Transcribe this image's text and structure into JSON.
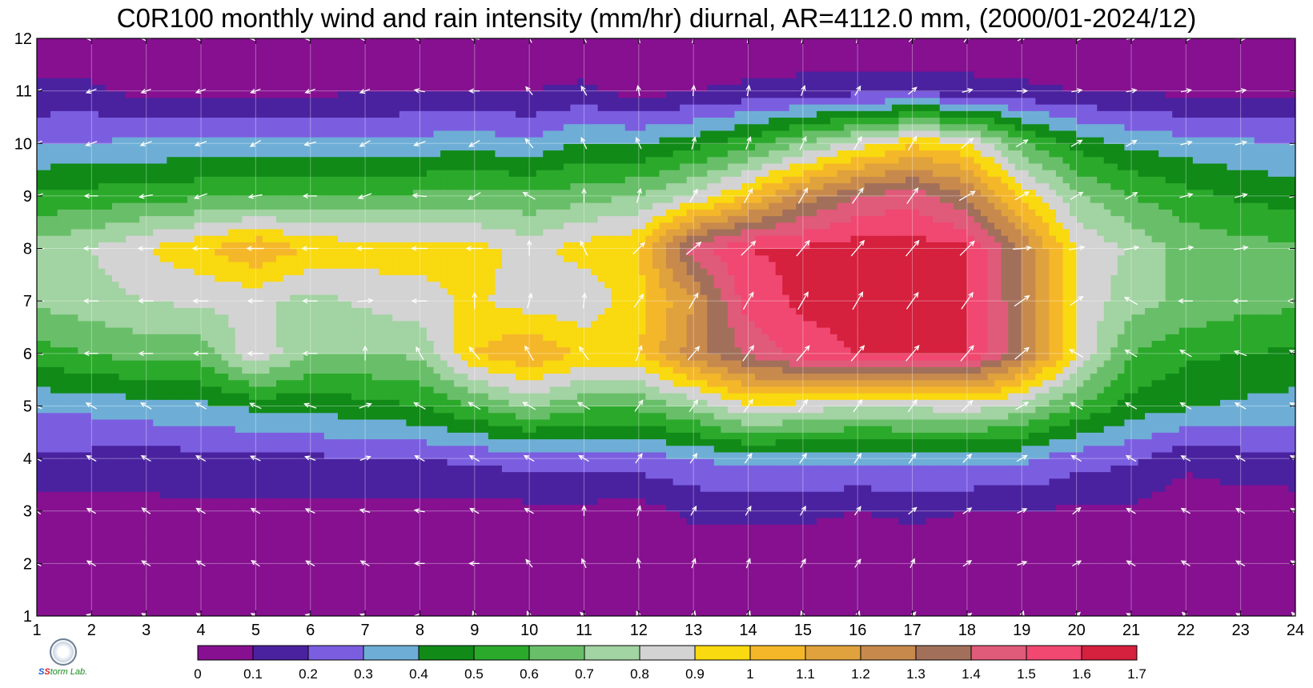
{
  "title": "C0R100 monthly wind and rain intensity (mm/hr) diurnal, AR=4112.0 mm, (2000/01-2024/12)",
  "chart_data": {
    "type": "heatmap",
    "title": "C0R100 monthly wind and rain intensity (mm/hr) diurnal, AR=4112.0 mm, (2000/01-2024/12)",
    "x_ticks": [
      "1",
      "2",
      "3",
      "4",
      "5",
      "6",
      "7",
      "8",
      "9",
      "10",
      "11",
      "12",
      "13",
      "14",
      "15",
      "16",
      "17",
      "18",
      "19",
      "20",
      "21",
      "22",
      "23",
      "24"
    ],
    "y_ticks": [
      "1",
      "2",
      "3",
      "4",
      "5",
      "6",
      "7",
      "8",
      "9",
      "10",
      "11",
      "12"
    ],
    "xlim": [
      1,
      24
    ],
    "ylim": [
      1,
      12
    ],
    "grid": true,
    "colorbar": {
      "ticks": [
        "0",
        "0.1",
        "0.2",
        "0.3",
        "0.4",
        "0.5",
        "0.6",
        "0.7",
        "0.8",
        "0.9",
        "1",
        "1.1",
        "1.2",
        "1.3",
        "1.4",
        "1.5",
        "1.6",
        "1.7"
      ],
      "colors": [
        "#861090",
        "#4a22a0",
        "#7b5ee0",
        "#6eaed6",
        "#118a18",
        "#2ba92b",
        "#69bf69",
        "#a2d3a2",
        "#d3d3d3",
        "#f9d90f",
        "#f5b72a",
        "#e0a23d",
        "#c88a4c",
        "#a2705a",
        "#e05a7a",
        "#f04870",
        "#d5203e"
      ]
    },
    "months": [
      1,
      2,
      3,
      4,
      5,
      6,
      7,
      8,
      9,
      10,
      11,
      12
    ],
    "rain_rate": [
      [
        0.02,
        0.02,
        0.02,
        0.02,
        0.02,
        0.02,
        0.02,
        0.02,
        0.02,
        0.02,
        0.02,
        0.02,
        0.02,
        0.02,
        0.02,
        0.02,
        0.02,
        0.02,
        0.02,
        0.02,
        0.02,
        0.02,
        0.02,
        0.02
      ],
      [
        0.03,
        0.03,
        0.03,
        0.03,
        0.03,
        0.03,
        0.03,
        0.03,
        0.03,
        0.03,
        0.03,
        0.03,
        0.03,
        0.03,
        0.03,
        0.03,
        0.03,
        0.03,
        0.03,
        0.03,
        0.03,
        0.03,
        0.03,
        0.03
      ],
      [
        0.05,
        0.06,
        0.07,
        0.08,
        0.08,
        0.07,
        0.06,
        0.06,
        0.06,
        0.07,
        0.07,
        0.06,
        0.12,
        0.12,
        0.12,
        0.1,
        0.12,
        0.1,
        0.1,
        0.08,
        0.08,
        0.04,
        0.04,
        0.04
      ],
      [
        0.18,
        0.17,
        0.16,
        0.16,
        0.17,
        0.18,
        0.2,
        0.2,
        0.22,
        0.24,
        0.24,
        0.25,
        0.3,
        0.33,
        0.33,
        0.32,
        0.33,
        0.33,
        0.32,
        0.24,
        0.22,
        0.12,
        0.16,
        0.18
      ],
      [
        0.32,
        0.33,
        0.36,
        0.38,
        0.42,
        0.44,
        0.46,
        0.5,
        0.6,
        0.72,
        0.62,
        0.62,
        0.72,
        0.9,
        0.85,
        0.8,
        0.82,
        0.85,
        0.76,
        0.6,
        0.46,
        0.42,
        0.38,
        0.36
      ],
      [
        0.56,
        0.6,
        0.64,
        0.64,
        0.88,
        0.7,
        0.7,
        0.72,
        1.0,
        1.1,
        0.98,
        1.0,
        1.25,
        1.42,
        1.55,
        1.6,
        1.6,
        1.6,
        1.32,
        0.9,
        0.6,
        0.52,
        0.5,
        0.48
      ],
      [
        0.72,
        0.76,
        0.8,
        0.82,
        0.82,
        0.76,
        0.82,
        0.86,
        0.92,
        0.85,
        0.82,
        0.96,
        1.2,
        1.55,
        1.62,
        1.65,
        1.6,
        1.62,
        1.3,
        0.88,
        0.74,
        0.68,
        0.64,
        0.62
      ],
      [
        0.74,
        0.8,
        0.9,
        0.98,
        1.1,
        0.98,
        0.96,
        0.94,
        0.94,
        0.86,
        0.95,
        1.0,
        1.45,
        1.6,
        1.62,
        1.66,
        1.65,
        1.62,
        1.28,
        0.9,
        0.78,
        0.66,
        0.64,
        0.62
      ],
      [
        0.52,
        0.54,
        0.56,
        0.58,
        0.6,
        0.6,
        0.6,
        0.62,
        0.64,
        0.62,
        0.66,
        0.7,
        0.82,
        1.02,
        1.25,
        1.4,
        1.46,
        1.3,
        0.98,
        0.72,
        0.6,
        0.54,
        0.48,
        0.46
      ],
      [
        0.3,
        0.31,
        0.32,
        0.33,
        0.33,
        0.32,
        0.32,
        0.34,
        0.36,
        0.32,
        0.42,
        0.4,
        0.46,
        0.56,
        0.7,
        0.84,
        0.98,
        0.92,
        0.62,
        0.46,
        0.38,
        0.34,
        0.32,
        0.3
      ],
      [
        0.12,
        0.12,
        0.06,
        0.08,
        0.08,
        0.08,
        0.09,
        0.1,
        0.1,
        0.1,
        0.12,
        0.06,
        0.1,
        0.12,
        0.14,
        0.16,
        0.16,
        0.14,
        0.12,
        0.1,
        0.09,
        0.08,
        0.08,
        0.08
      ],
      [
        0.02,
        0.02,
        0.02,
        0.02,
        0.02,
        0.02,
        0.02,
        0.02,
        0.02,
        0.02,
        0.02,
        0.02,
        0.02,
        0.02,
        0.02,
        0.02,
        0.02,
        0.02,
        0.02,
        0.02,
        0.02,
        0.02,
        0.02,
        0.02
      ]
    ],
    "wind_direction_deg": [
      [
        300,
        285,
        300,
        300,
        300,
        285,
        290,
        275,
        340,
        335,
        315,
        335,
        15,
        20,
        340,
        20,
        40,
        60,
        20,
        45,
        300,
        315,
        300,
        315
      ],
      [
        300,
        300,
        300,
        300,
        305,
        300,
        300,
        270,
        270,
        320,
        335,
        350,
        20,
        20,
        30,
        35,
        25,
        55,
        70,
        60,
        300,
        300,
        300,
        300
      ],
      [
        310,
        300,
        305,
        300,
        300,
        295,
        285,
        280,
        300,
        300,
        0,
        15,
        30,
        30,
        30,
        35,
        50,
        55,
        65,
        50,
        300,
        300,
        300,
        300
      ],
      [
        300,
        300,
        300,
        300,
        295,
        290,
        70,
        300,
        300,
        300,
        300,
        35,
        35,
        35,
        35,
        35,
        35,
        45,
        60,
        300,
        300,
        300,
        300,
        300
      ],
      [
        300,
        300,
        300,
        300,
        295,
        290,
        70,
        300,
        300,
        300,
        300,
        35,
        35,
        35,
        35,
        35,
        35,
        45,
        60,
        300,
        300,
        300,
        300,
        300
      ],
      [
        280,
        270,
        270,
        270,
        270,
        270,
        0,
        330,
        320,
        330,
        325,
        20,
        40,
        35,
        40,
        40,
        40,
        40,
        50,
        300,
        300,
        300,
        290,
        300
      ],
      [
        270,
        270,
        270,
        270,
        270,
        270,
        85,
        270,
        0,
        15,
        5,
        35,
        30,
        30,
        30,
        30,
        35,
        35,
        55,
        55,
        300,
        270,
        270,
        270
      ],
      [
        270,
        270,
        270,
        270,
        270,
        270,
        270,
        270,
        270,
        0,
        335,
        45,
        50,
        45,
        40,
        40,
        40,
        45,
        85,
        80,
        80,
        80,
        80,
        85
      ],
      [
        250,
        270,
        260,
        250,
        260,
        270,
        250,
        275,
        240,
        300,
        0,
        15,
        30,
        30,
        30,
        35,
        35,
        60,
        60,
        60,
        60,
        75,
        75,
        75
      ],
      [
        245,
        250,
        250,
        250,
        240,
        255,
        240,
        250,
        240,
        320,
        335,
        335,
        15,
        20,
        25,
        30,
        30,
        50,
        60,
        60,
        60,
        75,
        75,
        75
      ],
      [
        250,
        250,
        250,
        250,
        250,
        250,
        250,
        280,
        270,
        320,
        330,
        350,
        5,
        10,
        20,
        30,
        50,
        75,
        90,
        80,
        80,
        80,
        80,
        90
      ],
      [
        260,
        270,
        270,
        270,
        265,
        265,
        270,
        270,
        280,
        330,
        330,
        345,
        15,
        10,
        20,
        15,
        45,
        40,
        60,
        90,
        80,
        90,
        90,
        90
      ]
    ]
  }
}
